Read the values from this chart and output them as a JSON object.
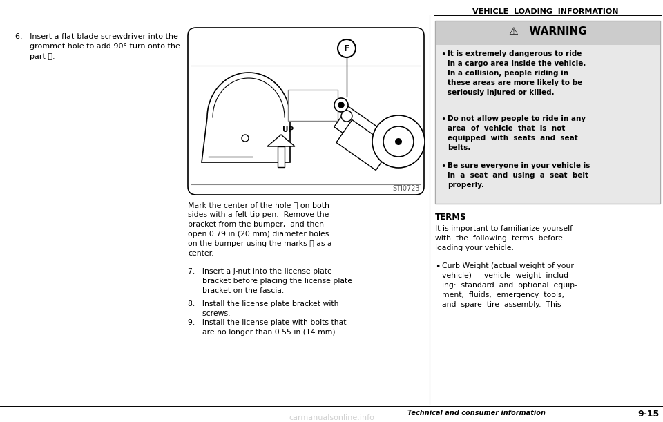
{
  "page_bg": "#ffffff",
  "header_text": "VEHICLE  LOADING  INFORMATION",
  "image_label": "STI0723",
  "step6_text": "6.   Insert a flat-blade screwdriver into the\n      grommet hole to add 90° turn onto the\n      part Ⓔ.",
  "mark_text": "Mark the center of the hole ⓕ on both\nsides with a felt-tip pen.  Remove the\nbracket from the bumper,  and then\nopen 0.79 in (20 mm) diameter holes\non the bumper using the marks ⓕ as a\ncenter.",
  "step7_text": "7.   Insert a J-nut into the license plate\n      bracket before placing the license plate\n      bracket on the fascia.",
  "step8_text": "8.   Install the license plate bracket with\n      screws.",
  "step9_text": "9.   Install the license plate with bolts that\n      are no longer than 0.55 in (14 mm).",
  "warning_bg": "#e8e8e8",
  "warning_hdr_bg": "#c8c8c8",
  "warning_title": "⚠   WARNING",
  "w1": "It is extremely dangerous to ride\nin a cargo area inside the vehicle.\nIn a collision, people riding in\nthese areas are more likely to be\nseriously injured or killed.",
  "w2": "Do not allow people to ride in any\narea  of  vehicle  that  is  not\nequipped  with  seats  and  seat\nbelts.",
  "w3": "Be sure everyone in your vehicle is\nin  a  seat  and  using  a  seat  belt\nproperly.",
  "terms_title": "TERMS",
  "terms_body": "It is important to familiarize yourself\nwith  the  following  terms  before\nloading your vehicle:",
  "curb_text": "Curb Weight (actual weight of your\nvehicle)  -  vehicle  weight  includ-\ning:  standard  and  optional  equip-\nment,  fluids,  emergency  tools,\nand  spare  tire  assembly.  This",
  "footer_left": "Technical and consumer information",
  "footer_right": "9-15",
  "watermark": "carmanualsonline.info"
}
